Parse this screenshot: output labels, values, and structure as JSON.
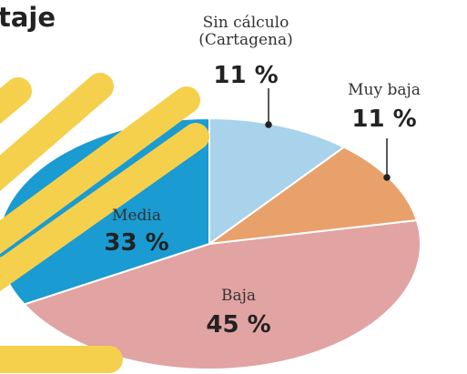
{
  "chart_data": {
    "type": "pie",
    "title": "taje",
    "categories": [
      "Sin cálculo (Cartagena)",
      "Muy baja",
      "Baja",
      "Media"
    ],
    "values": [
      11,
      11,
      45,
      33
    ],
    "value_labels": [
      "11 %",
      "11 %",
      "45 %",
      "33 %"
    ],
    "colors": [
      "#a8d3ea",
      "#e9a16b",
      "#e2a3a3",
      "#1a9bd2"
    ]
  }
}
